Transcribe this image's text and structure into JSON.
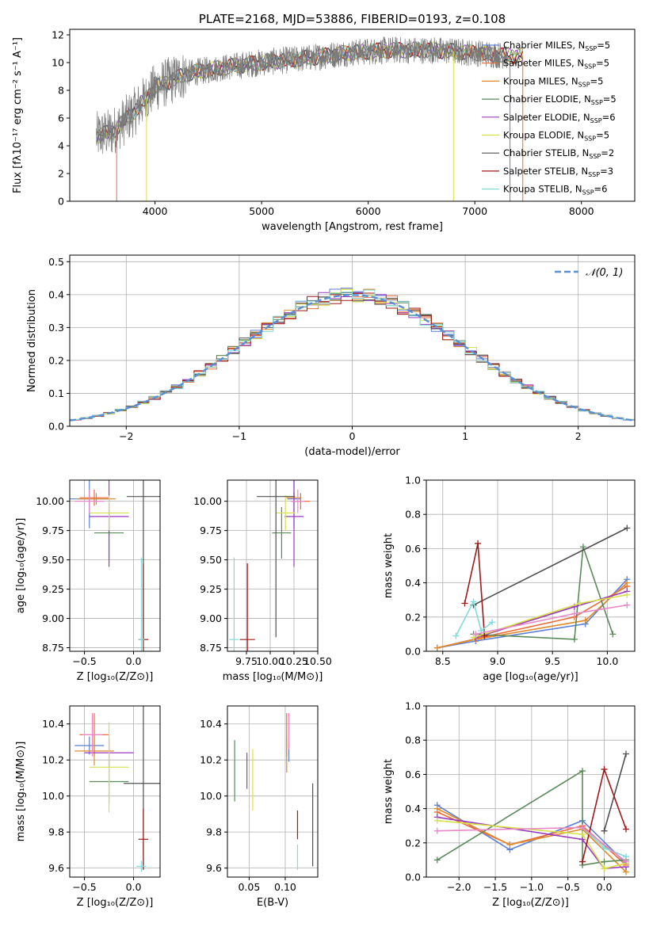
{
  "chart_data": [
    {
      "id": "spectrum",
      "type": "line",
      "title": "PLATE=2168, MJD=53886, FIBERID=0193, z=0.108",
      "xlabel": "wavelength [Angstrom, rest frame]",
      "ylabel": "Flux [fλ10⁻¹⁷ erg cm⁻² s⁻¹ A⁻¹]",
      "xlim": [
        3200,
        8500
      ],
      "ylim": [
        0,
        12.4
      ],
      "xticks": [
        "4000",
        "5000",
        "6000",
        "7000",
        "8000"
      ],
      "yticks": [
        "0",
        "2",
        "4",
        "6",
        "8",
        "10",
        "12"
      ],
      "legend_loc": "right",
      "data_profile": {
        "x": [
          3450,
          3600,
          3800,
          4000,
          4300,
          4600,
          5000,
          5400,
          5800,
          6200,
          6600,
          7000,
          7300
        ],
        "y": [
          4.7,
          5.0,
          6.4,
          8.2,
          9.2,
          9.6,
          10.0,
          10.3,
          10.7,
          10.9,
          10.9,
          10.7,
          10.5
        ]
      },
      "data_span": [
        3450,
        7300
      ],
      "model_span": [
        3450,
        7450
      ],
      "series": [
        {
          "name": "Chabrier MILES, N",
          "sub": "SSP",
          "suffix": "=5",
          "color": "#5a7fd6"
        },
        {
          "name": "Salpeter MILES, N",
          "sub": "SSP",
          "suffix": "=5",
          "color": "#ef6a3a"
        },
        {
          "name": "Kroupa MILES, N",
          "sub": "SSP",
          "suffix": "=5",
          "color": "#e08a2a"
        },
        {
          "name": "Chabrier ELODIE, N",
          "sub": "SSP",
          "suffix": "=5",
          "color": "#5a8a5a"
        },
        {
          "name": "Salpeter ELODIE, N",
          "sub": "SSP",
          "suffix": "=6",
          "color": "#9a3ac0"
        },
        {
          "name": "Kroupa ELODIE, N",
          "sub": "SSP",
          "suffix": "=5",
          "color": "#d8e04a"
        },
        {
          "name": "Chabrier STELIB, N",
          "sub": "SSP",
          "suffix": "=2",
          "color": "#505050"
        },
        {
          "name": "Salpeter STELIB, N",
          "sub": "SSP",
          "suffix": "=3",
          "color": "#a01818"
        },
        {
          "name": "Kroupa STELIB, N",
          "sub": "SSP",
          "suffix": "=6",
          "color": "#7fdcdc"
        }
      ]
    },
    {
      "id": "residuals",
      "type": "line",
      "xlabel": "(data-model)/error",
      "ylabel": "Normed distribution",
      "xlim": [
        -2.5,
        2.5
      ],
      "ylim": [
        0,
        0.52
      ],
      "xticks": [
        "−2",
        "−1",
        "0",
        "1",
        "2"
      ],
      "yticks": [
        "0.0",
        "0.1",
        "0.2",
        "0.3",
        "0.4",
        "0.5"
      ],
      "grid": true,
      "legend": "𝒩(0, 1)",
      "legend_loc": "upper right",
      "gaussian": {
        "mean": 0,
        "sigma": 1,
        "color": "#5a8fd6"
      },
      "hist_colors": [
        "#5a7fd6",
        "#ef6a3a",
        "#e08a2a",
        "#5a8a5a",
        "#9a3ac0",
        "#d8e04a",
        "#505050",
        "#a01818",
        "#7fdcdc"
      ]
    },
    {
      "id": "age-vs-Z",
      "type": "scatter",
      "xlabel": "Z [log₁₀(Z/Z⊙)]",
      "ylabel": "age  [log₁₀(age/yr)]",
      "xlim": [
        -0.65,
        0.27
      ],
      "ylim": [
        8.72,
        10.18
      ],
      "xticks": [
        "−0.5",
        "0.0"
      ],
      "yticks": [
        "8.75",
        "9.00",
        "9.25",
        "9.50",
        "9.75",
        "10.00"
      ],
      "grid": true,
      "points": [
        {
          "x": -0.45,
          "y": 10.02,
          "xerr": 0.2,
          "yerr": 0.25,
          "color": "#5a7fd6"
        },
        {
          "x": -0.4,
          "y": 10.03,
          "xerr": 0.15,
          "yerr": 0.07,
          "color": "#ef6a3a"
        },
        {
          "x": -0.38,
          "y": 10.02,
          "xerr": 0.2,
          "yerr": 0.05,
          "color": "#e08a2a"
        },
        {
          "x": -0.25,
          "y": 9.73,
          "xerr": 0.15,
          "yerr": 0.22,
          "color": "#5a8a5a"
        },
        {
          "x": -0.25,
          "y": 9.87,
          "xerr": 0.2,
          "yerr": 0.43,
          "color": "#9a3ac0"
        },
        {
          "x": -0.25,
          "y": 9.9,
          "xerr": 0.2,
          "yerr": 0.15,
          "color": "#d8e04a"
        },
        {
          "x": 0.1,
          "y": 10.04,
          "xerr": 0.17,
          "yerr": 1.2,
          "color": "#505050"
        },
        {
          "x": 0.1,
          "y": 8.82,
          "xerr": 0.05,
          "yerr": 0.65,
          "color": "#a01818"
        },
        {
          "x": 0.08,
          "y": 8.82,
          "xerr": 0.03,
          "yerr": 0.7,
          "color": "#7fdcdc"
        },
        {
          "x": -0.45,
          "y": 10.0,
          "xerr": 0.15,
          "yerr": 0.1,
          "color": "#e888c8"
        }
      ]
    },
    {
      "id": "age-vs-mass",
      "type": "scatter",
      "xlabel": "mass [log₁₀(M/M⊙)]",
      "ylabel": "",
      "xlim": [
        9.55,
        10.5
      ],
      "ylim": [
        8.72,
        10.18
      ],
      "xticks": [
        "9.75",
        "10.00",
        "10.25",
        "10.50"
      ],
      "yticks": [
        "8.75",
        "9.00",
        "9.25",
        "9.50",
        "9.75",
        "10.00"
      ],
      "grid": true,
      "points": [
        {
          "x": 10.25,
          "y": 10.02,
          "xerr": 0.07,
          "yerr": 0.25,
          "color": "#5a7fd6"
        },
        {
          "x": 10.32,
          "y": 10.0,
          "xerr": 0.1,
          "yerr": 0.07,
          "color": "#ef6a3a"
        },
        {
          "x": 10.25,
          "y": 10.03,
          "xerr": 0.08,
          "yerr": 0.05,
          "color": "#e08a2a"
        },
        {
          "x": 10.12,
          "y": 9.73,
          "xerr": 0.1,
          "yerr": 0.22,
          "color": "#5a8a5a"
        },
        {
          "x": 10.25,
          "y": 9.87,
          "xerr": 0.1,
          "yerr": 0.43,
          "color": "#9a3ac0"
        },
        {
          "x": 10.16,
          "y": 9.9,
          "xerr": 0.1,
          "yerr": 0.15,
          "color": "#d8e04a"
        },
        {
          "x": 10.06,
          "y": 10.04,
          "xerr": 0.2,
          "yerr": 1.2,
          "color": "#505050"
        },
        {
          "x": 9.76,
          "y": 8.82,
          "xerr": 0.08,
          "yerr": 0.65,
          "color": "#a01818"
        },
        {
          "x": 9.62,
          "y": 8.82,
          "xerr": 0.05,
          "yerr": 0.7,
          "color": "#7fdcdc"
        },
        {
          "x": 10.29,
          "y": 10.0,
          "xerr": 0.07,
          "yerr": 0.1,
          "color": "#e888c8"
        }
      ]
    },
    {
      "id": "massweight-vs-age",
      "type": "line",
      "xlabel": "age  [log₁₀(age/yr)]",
      "ylabel": "mass weight",
      "xlim": [
        8.35,
        10.25
      ],
      "ylim": [
        0,
        1.0
      ],
      "xticks": [
        "8.5",
        "9.0",
        "9.5",
        "10.0"
      ],
      "yticks": [
        "0.0",
        "0.2",
        "0.4",
        "0.6",
        "0.8",
        "1.0"
      ],
      "grid": true,
      "series": [
        {
          "color": "#5a7fd6",
          "x": [
            8.45,
            8.8,
            9.8,
            10.18
          ],
          "y": [
            0.02,
            0.06,
            0.16,
            0.42
          ]
        },
        {
          "color": "#ef6a3a",
          "x": [
            8.45,
            8.85,
            9.7,
            10.18
          ],
          "y": [
            0.02,
            0.08,
            0.2,
            0.38
          ]
        },
        {
          "color": "#e08a2a",
          "x": [
            8.45,
            8.8,
            9.8,
            10.18
          ],
          "y": [
            0.02,
            0.07,
            0.18,
            0.4
          ]
        },
        {
          "color": "#5a8a5a",
          "x": [
            8.78,
            9.7,
            9.78,
            10.05
          ],
          "y": [
            0.1,
            0.07,
            0.61,
            0.1
          ]
        },
        {
          "color": "#9a3ac0",
          "x": [
            8.8,
            9.7,
            10.18
          ],
          "y": [
            0.08,
            0.26,
            0.35
          ]
        },
        {
          "color": "#d8e04a",
          "x": [
            8.78,
            9.75,
            10.18
          ],
          "y": [
            0.08,
            0.28,
            0.33
          ]
        },
        {
          "color": "#505050",
          "x": [
            8.78,
            10.18
          ],
          "y": [
            0.27,
            0.72
          ]
        },
        {
          "color": "#a01818",
          "x": [
            8.7,
            8.82,
            8.88
          ],
          "y": [
            0.28,
            0.63,
            0.09
          ]
        },
        {
          "color": "#7fdcdc",
          "x": [
            8.62,
            8.78,
            8.85,
            8.95
          ],
          "y": [
            0.09,
            0.29,
            0.12,
            0.17
          ]
        },
        {
          "color": "#e888c8",
          "x": [
            8.8,
            9.7,
            10.18
          ],
          "y": [
            0.1,
            0.22,
            0.27
          ]
        }
      ]
    },
    {
      "id": "mass-vs-Z",
      "type": "scatter",
      "xlabel": "Z [log₁₀(Z/Z⊙)]",
      "ylabel": "mass [log₁₀(M/M⊙)]",
      "xlim": [
        -0.65,
        0.27
      ],
      "ylim": [
        9.55,
        10.5
      ],
      "xticks": [
        "−0.5",
        "0.0"
      ],
      "yticks": [
        "9.6",
        "9.8",
        "10.0",
        "10.2",
        "10.4"
      ],
      "grid": true,
      "points": [
        {
          "x": -0.45,
          "y": 10.28,
          "xerr": 0.15,
          "yerr": 0.05,
          "color": "#5a7fd6"
        },
        {
          "x": -0.4,
          "y": 10.34,
          "xerr": 0.15,
          "yerr": 0.12,
          "color": "#ef6a3a"
        },
        {
          "x": -0.4,
          "y": 10.25,
          "xerr": 0.2,
          "yerr": 0.08,
          "color": "#e08a2a"
        },
        {
          "x": -0.25,
          "y": 10.08,
          "xerr": 0.2,
          "yerr": 0.12,
          "color": "#5a8a5a"
        },
        {
          "x": -0.25,
          "y": 10.24,
          "xerr": 0.25,
          "yerr": 0.08,
          "color": "#9a3ac0"
        },
        {
          "x": -0.25,
          "y": 10.16,
          "xerr": 0.2,
          "yerr": 0.25,
          "color": "#d8e04a"
        },
        {
          "x": 0.1,
          "y": 10.07,
          "xerr": 0.2,
          "yerr": 0.47,
          "color": "#505050"
        },
        {
          "x": 0.1,
          "y": 9.76,
          "xerr": 0.05,
          "yerr": 0.17,
          "color": "#a01818"
        },
        {
          "x": 0.08,
          "y": 9.61,
          "xerr": 0.05,
          "yerr": 0.03,
          "color": "#7fdcdc"
        },
        {
          "x": -0.42,
          "y": 10.34,
          "xerr": 0.1,
          "yerr": 0.12,
          "color": "#e888c8"
        }
      ]
    },
    {
      "id": "mass-vs-EBV",
      "type": "scatter",
      "xlabel": "E(B-V)",
      "ylabel": "",
      "xlim": [
        0.02,
        0.145
      ],
      "ylim": [
        9.55,
        10.5
      ],
      "xticks": [
        "0.05",
        "0.10"
      ],
      "yticks": [
        "9.6",
        "9.8",
        "10.0",
        "10.2",
        "10.4"
      ],
      "grid": true,
      "points": [
        {
          "x": 0.105,
          "y": 10.24,
          "yerr": 0.05,
          "color": "#5a7fd6"
        },
        {
          "x": 0.102,
          "y": 10.34,
          "yerr": 0.12,
          "color": "#ef6a3a"
        },
        {
          "x": 0.102,
          "y": 10.23,
          "yerr": 0.1,
          "color": "#e08a2a"
        },
        {
          "x": 0.03,
          "y": 10.14,
          "yerr": 0.17,
          "color": "#5a8a5a"
        },
        {
          "x": 0.047,
          "y": 10.14,
          "yerr": 0.1,
          "color": "#9a3ac0"
        },
        {
          "x": 0.055,
          "y": 10.09,
          "yerr": 0.17,
          "color": "#d8e04a"
        },
        {
          "x": 0.138,
          "y": 9.84,
          "yerr": 0.23,
          "color": "#505050"
        },
        {
          "x": 0.117,
          "y": 9.84,
          "yerr": 0.08,
          "color": "#a01818"
        },
        {
          "x": 0.117,
          "y": 9.66,
          "yerr": 0.07,
          "color": "#7fdcdc"
        },
        {
          "x": 0.105,
          "y": 10.36,
          "yerr": 0.1,
          "color": "#e888c8"
        }
      ]
    },
    {
      "id": "massweight-vs-Z",
      "type": "line",
      "xlabel": "Z [log₁₀(Z/Z⊙)]",
      "ylabel": "mass weight",
      "xlim": [
        -2.45,
        0.42
      ],
      "ylim": [
        0,
        1.0
      ],
      "xticks": [
        "−2.0",
        "−1.5",
        "−1.0",
        "−0.5",
        "0.0"
      ],
      "yticks": [
        "0.0",
        "0.2",
        "0.4",
        "0.6",
        "0.8",
        "1.0"
      ],
      "grid": true,
      "series": [
        {
          "color": "#5a7fd6",
          "x": [
            -2.3,
            -1.3,
            -0.3,
            0.3
          ],
          "y": [
            0.42,
            0.16,
            0.33,
            0.08
          ]
        },
        {
          "color": "#ef6a3a",
          "x": [
            -2.3,
            -1.3,
            -0.3,
            0.3
          ],
          "y": [
            0.38,
            0.19,
            0.3,
            0.07
          ]
        },
        {
          "color": "#e08a2a",
          "x": [
            -2.3,
            -1.3,
            -0.3,
            0.3
          ],
          "y": [
            0.4,
            0.19,
            0.28,
            0.03
          ]
        },
        {
          "color": "#5a8a5a",
          "x": [
            -2.3,
            -0.3,
            -0.3,
            0.0,
            0.3
          ],
          "y": [
            0.1,
            0.62,
            0.07,
            0.09,
            0.1
          ]
        },
        {
          "color": "#9a3ac0",
          "x": [
            -2.3,
            -0.3,
            0.0,
            0.3
          ],
          "y": [
            0.35,
            0.22,
            0.05,
            0.06
          ]
        },
        {
          "color": "#d8e04a",
          "x": [
            -2.3,
            -0.3,
            0.0,
            0.3
          ],
          "y": [
            0.33,
            0.25,
            0.05,
            0.08
          ]
        },
        {
          "color": "#505050",
          "x": [
            0.0,
            0.3
          ],
          "y": [
            0.27,
            0.72
          ]
        },
        {
          "color": "#a01818",
          "x": [
            -0.3,
            0.0,
            0.3
          ],
          "y": [
            0.09,
            0.63,
            0.28
          ]
        },
        {
          "color": "#7fdcdc",
          "x": [
            -0.3,
            0.0,
            0.3
          ],
          "y": [
            0.29,
            0.17,
            0.12
          ]
        },
        {
          "color": "#e888c8",
          "x": [
            -2.3,
            -0.3,
            0.3
          ],
          "y": [
            0.27,
            0.29,
            0.09
          ]
        }
      ]
    }
  ]
}
